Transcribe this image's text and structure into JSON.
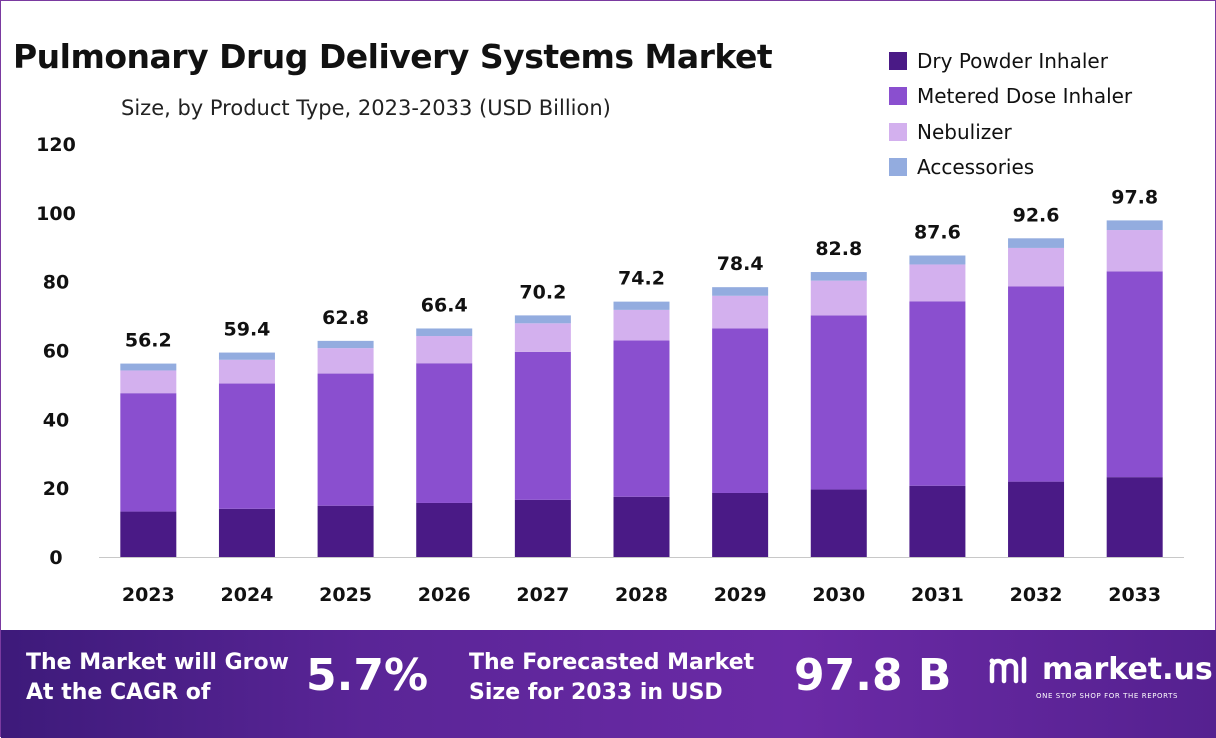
{
  "header": {
    "title": "Pulmonary Drug Delivery Systems Market",
    "subtitle": "Size, by Product Type, 2023-2033 (USD Billion)"
  },
  "legend": [
    {
      "label": "Dry Powder Inhaler",
      "color": "#4a1a86"
    },
    {
      "label": "Metered Dose Inhaler",
      "color": "#8a4fcf"
    },
    {
      "label": "Nebulizer",
      "color": "#d3b0ee"
    },
    {
      "label": "Accessories",
      "color": "#93acdf"
    }
  ],
  "chart_data": {
    "type": "bar",
    "stacked": true,
    "categories": [
      "2023",
      "2024",
      "2025",
      "2026",
      "2027",
      "2028",
      "2029",
      "2030",
      "2031",
      "2032",
      "2033"
    ],
    "series": [
      {
        "name": "Dry Powder Inhaler",
        "color": "#4a1a86",
        "values": [
          13.2,
          14.0,
          14.9,
          15.7,
          16.6,
          17.5,
          18.6,
          19.6,
          20.7,
          21.9,
          23.2
        ]
      },
      {
        "name": "Metered Dose Inhaler",
        "color": "#8a4fcf",
        "values": [
          34.4,
          36.4,
          38.4,
          40.6,
          43.0,
          45.4,
          47.8,
          50.6,
          53.6,
          56.7,
          59.8
        ]
      },
      {
        "name": "Nebulizer",
        "color": "#d3b0ee",
        "values": [
          6.6,
          6.9,
          7.4,
          7.9,
          8.3,
          8.9,
          9.5,
          10.1,
          10.7,
          11.2,
          12.0
        ]
      },
      {
        "name": "Accessories",
        "color": "#93acdf",
        "values": [
          2.0,
          2.1,
          2.1,
          2.2,
          2.3,
          2.4,
          2.5,
          2.5,
          2.6,
          2.8,
          2.8
        ]
      }
    ],
    "totals": [
      "56.2",
      "59.4",
      "62.8",
      "66.4",
      "70.2",
      "74.2",
      "78.4",
      "82.8",
      "87.6",
      "92.6",
      "97.8"
    ],
    "y_ticks": [
      "0",
      "20",
      "40",
      "60",
      "80",
      "100",
      "120"
    ],
    "ylim": [
      0,
      120
    ],
    "title": "Pulmonary Drug Delivery Systems Market",
    "xlabel": "",
    "ylabel": ""
  },
  "banner": {
    "cagr_label_line1": "The Market will Grow",
    "cagr_label_line2": "At the CAGR of",
    "cagr_value": "5.7%",
    "forecast_label_line1": "The Forecasted Market",
    "forecast_label_line2": "Size for 2033 in USD",
    "forecast_value": "97.8 B",
    "logo_text": "market.us",
    "logo_tagline": "ONE STOP SHOP FOR THE REPORTS"
  }
}
